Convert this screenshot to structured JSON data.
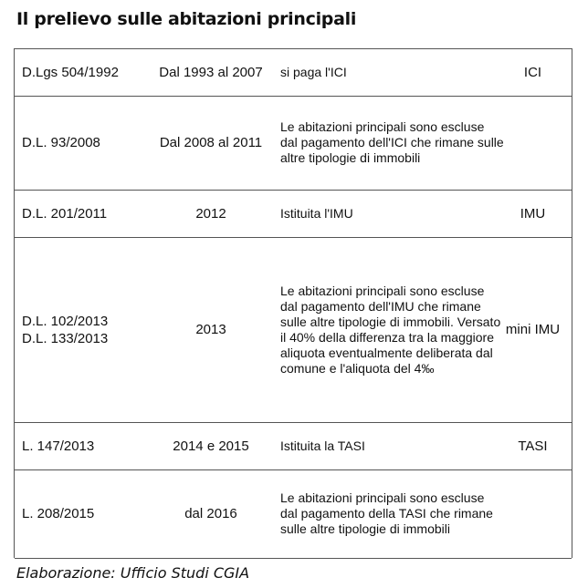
{
  "title": "Il prelievo sulle abitazioni principali",
  "rows": [
    {
      "law": [
        "D.Lgs 504/1992"
      ],
      "period": "Dal 1993 al 2007",
      "description": "si paga l'ICI",
      "tax": "ICI"
    },
    {
      "law": [
        "D.L. 93/2008"
      ],
      "period": "Dal 2008 al 2011",
      "description": "Le abitazioni principali sono escluse dal pagamento dell'ICI che rimane sulle altre tipologie di immobili",
      "tax": ""
    },
    {
      "law": [
        "D.L. 201/2011"
      ],
      "period": "2012",
      "description": "Istituita l'IMU",
      "tax": "IMU"
    },
    {
      "law": [
        "D.L. 102/2013",
        "D.L. 133/2013"
      ],
      "period": "2013",
      "description": "Le abitazioni principali sono escluse dal pagamento dell'IMU che rimane sulle altre tipologie di immobili. Versato il 40% della differenza tra la maggiore aliquota eventualmente deliberata dal comune e l'aliquota del 4‰",
      "tax": "mini IMU"
    },
    {
      "law": [
        "L. 147/2013"
      ],
      "period": "2014 e 2015",
      "description": "Istituita la TASI",
      "tax": "TASI"
    },
    {
      "law": [
        "L. 208/2015"
      ],
      "period": "dal 2016",
      "description": "Le abitazioni principali sono escluse dal pagamento della TASI che rimane sulle altre tipologie di immobili",
      "tax": ""
    }
  ],
  "footer": "Elaborazione: Ufficio Studi CGIA"
}
